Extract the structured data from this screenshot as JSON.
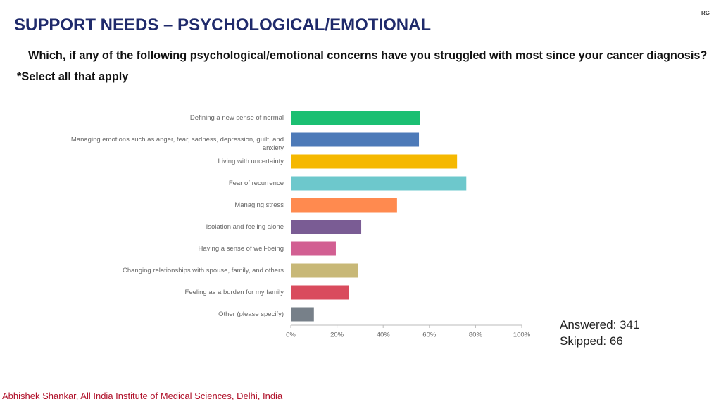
{
  "header": {
    "badge": "RG"
  },
  "chart_data": {
    "type": "bar",
    "orientation": "horizontal",
    "title": "SUPPORT NEEDS – PSYCHOLOGICAL/EMOTIONAL",
    "subtitle": "Which, if any of the following psychological/emotional concerns have you struggled with most since your cancer diagnosis?",
    "note": "*Select all that apply",
    "categories": [
      "Defining a new sense of normal",
      "Managing emotions such as anger, fear, sadness, depression, guilt, and anxiety",
      "Living with uncertainty",
      "Fear of recurrence",
      "Managing stress",
      "Isolation and feeling alone",
      "Having a sense of well-being",
      "Changing relationships with spouse, family, and others",
      "Feeling as a burden for my family",
      "Other (please specify)"
    ],
    "values": [
      56,
      55.5,
      72,
      76,
      46,
      30.5,
      19.5,
      29,
      25,
      10
    ],
    "colors": [
      "#1bbf72",
      "#4d7ab8",
      "#f5b800",
      "#6dc8cc",
      "#ff8a4f",
      "#7a5c94",
      "#d25f92",
      "#c8b877",
      "#d94b5d",
      "#778089"
    ],
    "xlim": [
      0,
      100
    ],
    "xticks": [
      {
        "value": 0,
        "label": "0%"
      },
      {
        "value": 20,
        "label": "20%"
      },
      {
        "value": 40,
        "label": "40%"
      },
      {
        "value": 60,
        "label": "60%"
      },
      {
        "value": 80,
        "label": "80%"
      },
      {
        "value": 100,
        "label": "100%"
      }
    ],
    "annotations": [
      "Answered: 341",
      "Skipped: 66"
    ]
  },
  "footer": "Abhishek Shankar, All India Institute of Medical Sciences, Delhi, India"
}
